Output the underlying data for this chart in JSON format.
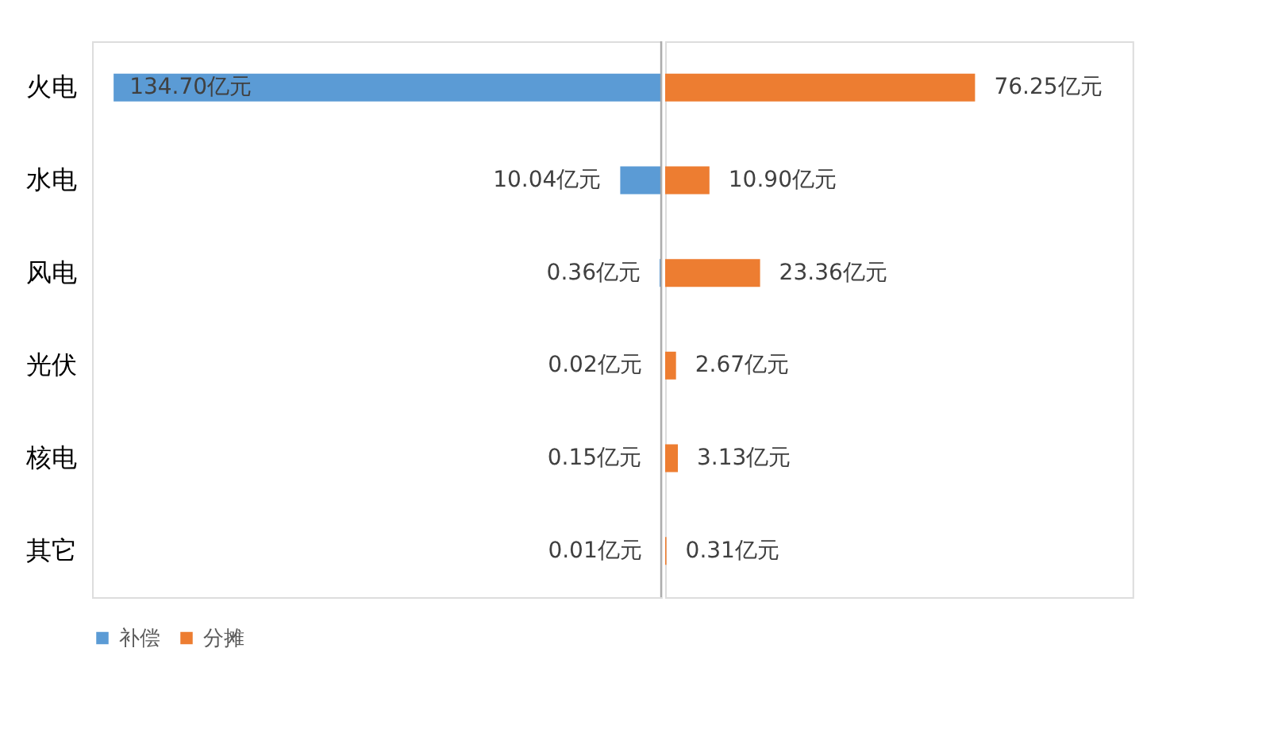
{
  "chart_data": [
    {
      "type": "bar",
      "orientation": "horizontal",
      "categories": [
        "火电",
        "水电",
        "风电",
        "光伏",
        "核电",
        "其它"
      ],
      "series": [
        {
          "name": "补偿",
          "color": "#5b9bd5",
          "values": [
            134.7,
            10.04,
            0.36,
            0.02,
            0.15,
            0.01
          ],
          "value_labels": [
            "134.70亿元",
            "10.04亿元",
            "0.36亿元",
            "0.02亿元",
            "0.15亿元",
            "0.01亿元"
          ]
        }
      ],
      "xlim": [
        140,
        0
      ],
      "tick_labels": "y",
      "legend": "bottom"
    },
    {
      "type": "bar",
      "orientation": "horizontal",
      "categories": [
        null,
        null,
        null,
        null,
        null,
        null
      ],
      "series": [
        {
          "name": "分摊",
          "color": "#ed7d31",
          "values": [
            76.25,
            10.9,
            23.36,
            2.67,
            3.13,
            0.31
          ],
          "value_labels": [
            "76.25亿元",
            "10.90亿元",
            "23.36亿元",
            "2.67亿元",
            "3.13亿元",
            "0.31亿元"
          ]
        }
      ],
      "xlim": [
        0,
        115
      ],
      "tick_labels": false,
      "legend": "bottom"
    }
  ]
}
